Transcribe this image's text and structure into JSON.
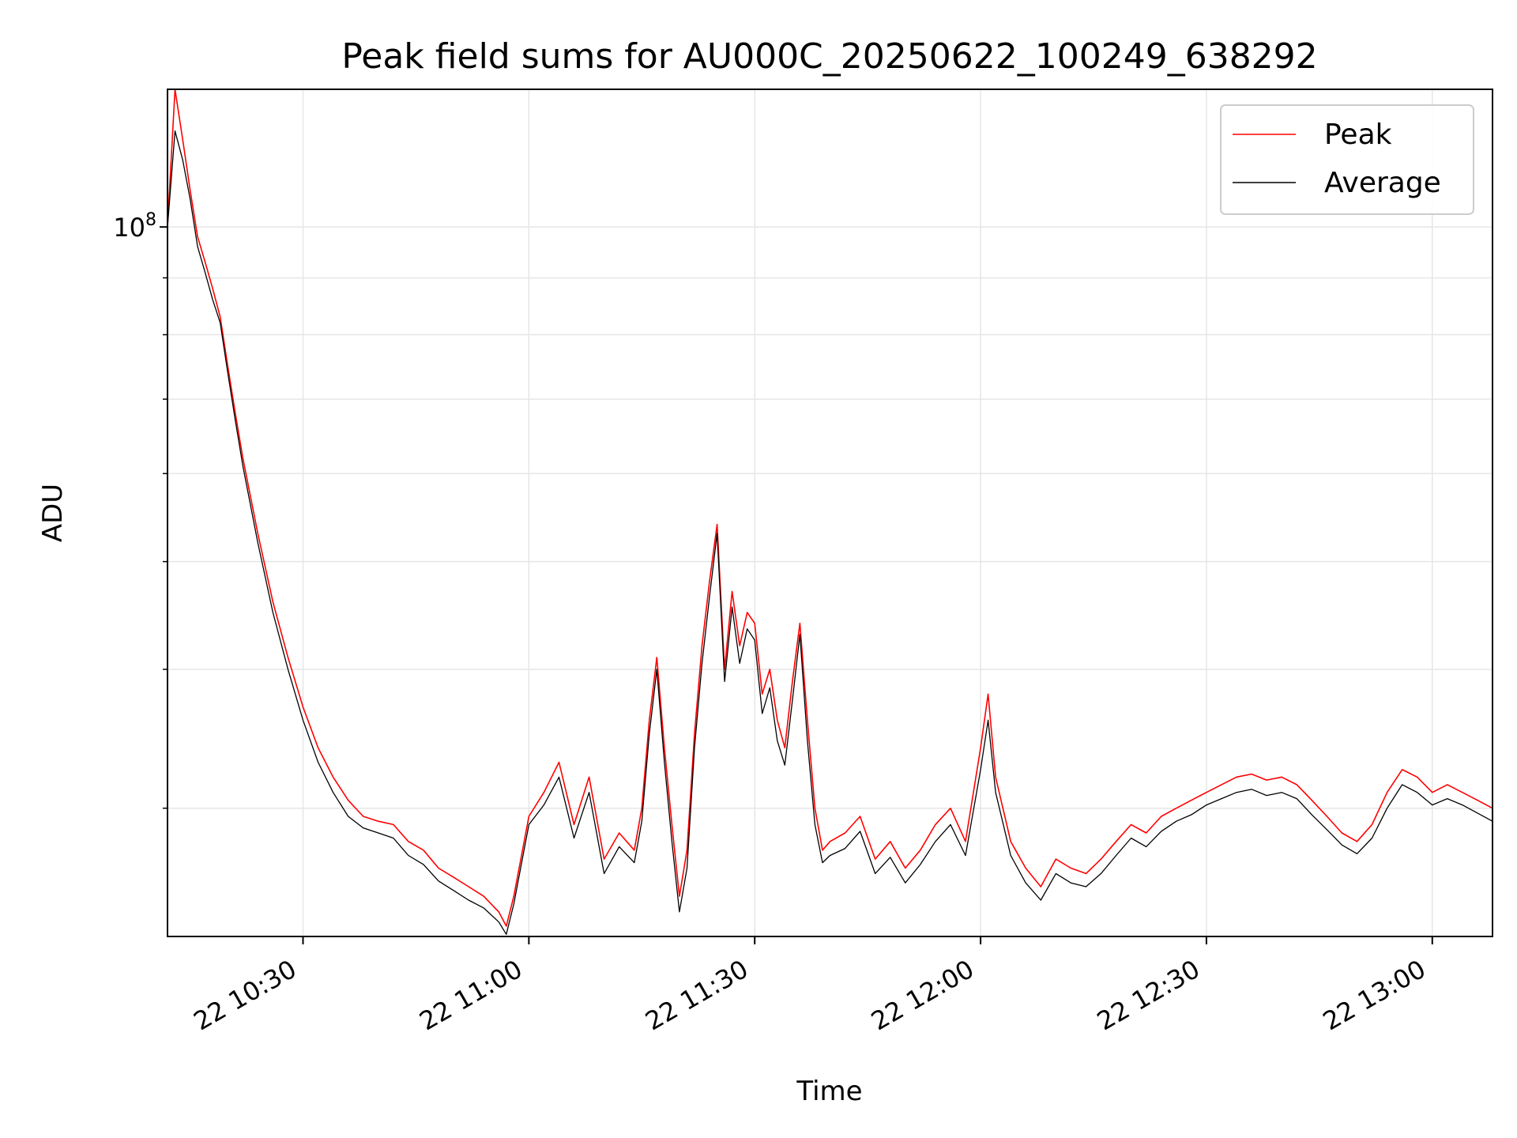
{
  "chart_data": {
    "type": "line",
    "title": "Peak field sums for AU000C_20250622_100249_638292",
    "xlabel": "Time",
    "ylabel": "ADU",
    "y_scale": "log",
    "grid": true,
    "legend_position": "top-right",
    "xlim": [
      "2025-06-22 10:12",
      "2025-06-22 13:08"
    ],
    "ylim": [
      23000000.0,
      133000000.0
    ],
    "x_ticks": [
      "22 10:30",
      "22 11:00",
      "22 11:30",
      "22 12:00",
      "22 12:30",
      "22 13:00"
    ],
    "y_ticks": [
      {
        "value": 100000000,
        "base": "10",
        "exponent": "8"
      }
    ],
    "series": [
      {
        "name": "Peak",
        "color": "#ff0000",
        "x": [
          "10:12",
          "10:13",
          "10:14",
          "10:15",
          "10:16",
          "10:17",
          "10:18",
          "10:19",
          "10:20",
          "10:21",
          "10:22",
          "10:24",
          "10:26",
          "10:28",
          "10:30",
          "10:32",
          "10:34",
          "10:36",
          "10:38",
          "10:40",
          "10:42",
          "10:44",
          "10:46",
          "10:48",
          "10:50",
          "10:52",
          "10:54",
          "10:56",
          "10:57",
          "10:58",
          "11:00",
          "11:02",
          "11:04",
          "11:06",
          "11:08",
          "11:10",
          "11:12",
          "11:14",
          "11:15",
          "11:16",
          "11:17",
          "11:18",
          "11:19",
          "11:20",
          "11:21",
          "11:22",
          "11:23",
          "11:24",
          "11:25",
          "11:26",
          "11:27",
          "11:28",
          "11:29",
          "11:30",
          "11:31",
          "11:32",
          "11:33",
          "11:34",
          "11:35",
          "11:36",
          "11:37",
          "11:38",
          "11:39",
          "11:40",
          "11:42",
          "11:44",
          "11:46",
          "11:48",
          "11:50",
          "11:52",
          "11:54",
          "11:56",
          "11:58",
          "12:00",
          "12:01",
          "12:02",
          "12:04",
          "12:06",
          "12:08",
          "12:10",
          "12:12",
          "12:14",
          "12:16",
          "12:18",
          "12:20",
          "12:22",
          "12:24",
          "12:26",
          "12:28",
          "12:30",
          "12:32",
          "12:34",
          "12:36",
          "12:38",
          "12:40",
          "12:42",
          "12:44",
          "12:46",
          "12:48",
          "12:50",
          "12:52",
          "12:54",
          "12:56",
          "12:58",
          "13:00",
          "13:02",
          "13:04",
          "13:06",
          "13:08"
        ],
        "values": [
          100000000.0,
          133000000.0,
          120000000.0,
          108000000.0,
          98000000.0,
          93000000.0,
          88000000.0,
          83000000.0,
          75000000.0,
          68000000.0,
          62000000.0,
          53000000.0,
          46000000.0,
          41000000.0,
          37000000.0,
          34000000.0,
          32000000.0,
          30500000.0,
          29500000.0,
          29200000.0,
          29000000.0,
          28000000.0,
          27500000.0,
          26500000.0,
          26000000.0,
          25500000.0,
          25000000.0,
          24200000.0,
          23500000.0,
          25000000.0,
          29500000.0,
          31000000.0,
          33000000.0,
          29000000.0,
          32000000.0,
          27000000.0,
          28500000.0,
          27500000.0,
          30000000.0,
          36000000.0,
          41000000.0,
          34000000.0,
          29000000.0,
          25000000.0,
          27500000.0,
          35000000.0,
          42000000.0,
          48000000.0,
          54000000.0,
          40000000.0,
          47000000.0,
          42000000.0,
          45000000.0,
          44000000.0,
          38000000.0,
          40000000.0,
          36000000.0,
          34000000.0,
          39000000.0,
          44000000.0,
          36000000.0,
          30000000.0,
          27500000.0,
          28000000.0,
          28500000.0,
          29500000.0,
          27000000.0,
          28000000.0,
          26500000.0,
          27500000.0,
          29000000.0,
          30000000.0,
          28000000.0,
          34000000.0,
          38000000.0,
          32000000.0,
          28000000.0,
          26500000.0,
          25500000.0,
          27000000.0,
          26500000.0,
          26200000.0,
          27000000.0,
          28000000.0,
          29000000.0,
          28500000.0,
          29500000.0,
          30000000.0,
          30500000.0,
          31000000.0,
          31500000.0,
          32000000.0,
          32200000.0,
          31800000.0,
          32000000.0,
          31500000.0,
          30500000.0,
          29500000.0,
          28500000.0,
          28000000.0,
          29000000.0,
          31000000.0,
          32500000.0,
          32000000.0,
          31000000.0,
          31500000.0,
          31000000.0,
          30500000.0,
          30000000.0
        ]
      },
      {
        "name": "Average",
        "color": "#000000",
        "x": [
          "10:12",
          "10:13",
          "10:14",
          "10:15",
          "10:16",
          "10:17",
          "10:18",
          "10:19",
          "10:20",
          "10:21",
          "10:22",
          "10:24",
          "10:26",
          "10:28",
          "10:30",
          "10:32",
          "10:34",
          "10:36",
          "10:38",
          "10:40",
          "10:42",
          "10:44",
          "10:46",
          "10:48",
          "10:50",
          "10:52",
          "10:54",
          "10:56",
          "10:57",
          "10:58",
          "11:00",
          "11:02",
          "11:04",
          "11:06",
          "11:08",
          "11:10",
          "11:12",
          "11:14",
          "11:15",
          "11:16",
          "11:17",
          "11:18",
          "11:19",
          "11:20",
          "11:21",
          "11:22",
          "11:23",
          "11:24",
          "11:25",
          "11:26",
          "11:27",
          "11:28",
          "11:29",
          "11:30",
          "11:31",
          "11:32",
          "11:33",
          "11:34",
          "11:35",
          "11:36",
          "11:37",
          "11:38",
          "11:39",
          "11:40",
          "11:42",
          "11:44",
          "11:46",
          "11:48",
          "11:50",
          "11:52",
          "11:54",
          "11:56",
          "11:58",
          "12:00",
          "12:01",
          "12:02",
          "12:04",
          "12:06",
          "12:08",
          "12:10",
          "12:12",
          "12:14",
          "12:16",
          "12:18",
          "12:20",
          "12:22",
          "12:24",
          "12:26",
          "12:28",
          "12:30",
          "12:32",
          "12:34",
          "12:36",
          "12:38",
          "12:40",
          "12:42",
          "12:44",
          "12:46",
          "12:48",
          "12:50",
          "12:52",
          "12:54",
          "12:56",
          "12:58",
          "13:00",
          "13:02",
          "13:04",
          "13:06",
          "13:08"
        ],
        "values": [
          100000000.0,
          122000000.0,
          115000000.0,
          106000000.0,
          96000000.0,
          91000000.0,
          86000000.0,
          82000000.0,
          74000000.0,
          67000000.0,
          61000000.0,
          52000000.0,
          45000000.0,
          40000000.0,
          36000000.0,
          33000000.0,
          31000000.0,
          29500000.0,
          28800000.0,
          28500000.0,
          28200000.0,
          27200000.0,
          26700000.0,
          25800000.0,
          25300000.0,
          24800000.0,
          24400000.0,
          23700000.0,
          23100000.0,
          24600000.0,
          29000000.0,
          30200000.0,
          32000000.0,
          28200000.0,
          31000000.0,
          26200000.0,
          27700000.0,
          26800000.0,
          29200000.0,
          35000000.0,
          40000000.0,
          33000000.0,
          28000000.0,
          24200000.0,
          26500000.0,
          34000000.0,
          40500000.0,
          46500000.0,
          53000000.0,
          39000000.0,
          45500000.0,
          40500000.0,
          43500000.0,
          42500000.0,
          36500000.0,
          38500000.0,
          34500000.0,
          32800000.0,
          37500000.0,
          43000000.0,
          34500000.0,
          29000000.0,
          26800000.0,
          27200000.0,
          27600000.0,
          28600000.0,
          26200000.0,
          27100000.0,
          25700000.0,
          26700000.0,
          28000000.0,
          29000000.0,
          27200000.0,
          32500000.0,
          36000000.0,
          31000000.0,
          27200000.0,
          25700000.0,
          24800000.0,
          26200000.0,
          25700000.0,
          25500000.0,
          26200000.0,
          27200000.0,
          28200000.0,
          27700000.0,
          28600000.0,
          29200000.0,
          29600000.0,
          30200000.0,
          30600000.0,
          31000000.0,
          31200000.0,
          30800000.0,
          31000000.0,
          30600000.0,
          29600000.0,
          28700000.0,
          27800000.0,
          27300000.0,
          28200000.0,
          30000000.0,
          31500000.0,
          31000000.0,
          30200000.0,
          30600000.0,
          30200000.0,
          29700000.0,
          29200000.0
        ]
      }
    ]
  }
}
